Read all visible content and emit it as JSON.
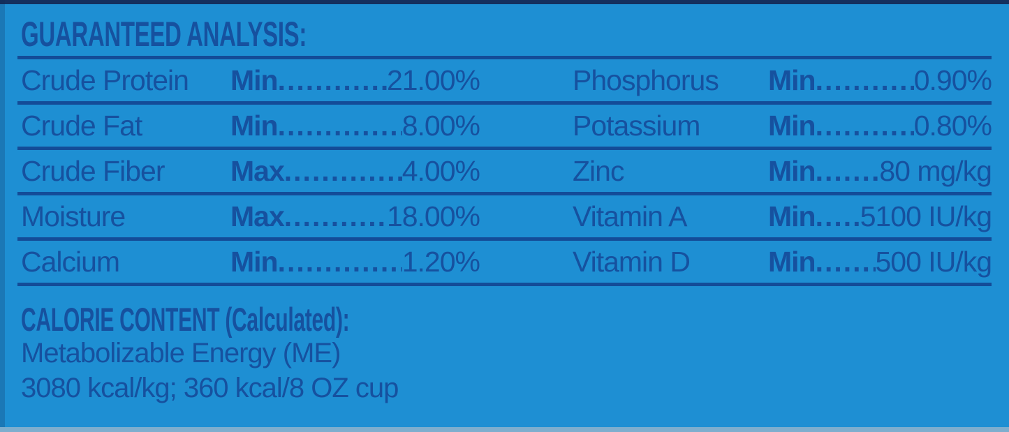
{
  "colors": {
    "background": "#1E8FD3",
    "ink": "#16519F",
    "rule": "#134C98",
    "top_strip": "#14305F",
    "bottom_strip": "#7EAECE"
  },
  "title": "GUARANTEED ANALYSIS:",
  "table": {
    "rows": [
      {
        "left": {
          "name": "Crude Protein",
          "qualifier": "Min",
          "value": "21.00%"
        },
        "right": {
          "name": "Phosphorus",
          "qualifier": "Min",
          "value": "0.90%"
        }
      },
      {
        "left": {
          "name": "Crude Fat",
          "qualifier": "Min",
          "value": "8.00%"
        },
        "right": {
          "name": "Potassium",
          "qualifier": "Min",
          "value": "0.80%"
        }
      },
      {
        "left": {
          "name": "Crude Fiber",
          "qualifier": "Max",
          "value": "4.00%"
        },
        "right": {
          "name": "Zinc",
          "qualifier": "Min",
          "value": "80 mg/kg"
        }
      },
      {
        "left": {
          "name": "Moisture",
          "qualifier": "Max",
          "value": "18.00%"
        },
        "right": {
          "name": "Vitamin A",
          "qualifier": "Min",
          "value": "5100 IU/kg"
        }
      },
      {
        "left": {
          "name": "Calcium",
          "qualifier": "Min",
          "value": "1.20%"
        },
        "right": {
          "name": "Vitamin D",
          "qualifier": "Min",
          "value": "500 IU/kg"
        }
      }
    ]
  },
  "calorie": {
    "heading": "CALORIE CONTENT (Calculated):",
    "me_line": "Metabolizable Energy (ME)",
    "kcal_line": "3080 kcal/kg; 360 kcal/8 OZ cup"
  }
}
